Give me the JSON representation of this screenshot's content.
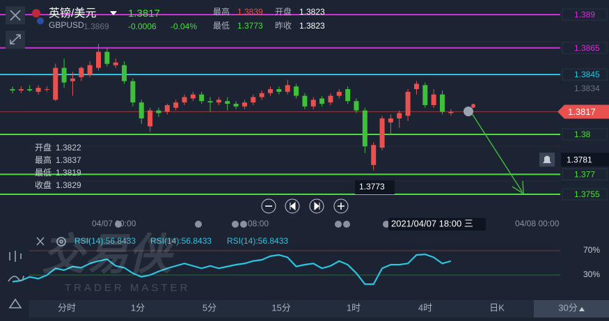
{
  "header": {
    "symbol": "英镑/美元",
    "code": "GBPUSD",
    "price": "1.3817",
    "change": "-0.0006",
    "change_pct": "-0.04%",
    "high_label": "最高",
    "high": "1.3839",
    "open_label": "开盘",
    "open": "1.3823",
    "low_label": "最低",
    "low": "1.3773",
    "prev_label": "昨收",
    "prev": "1.3823"
  },
  "price_chart": {
    "ylim": [
      1.3755,
      1.389
    ],
    "levels": [
      {
        "price": 1.389,
        "color": "#d12fd6"
      },
      {
        "price": 1.3865,
        "color": "#d12fd6"
      },
      {
        "price": 1.3845,
        "color": "#2ec4e0"
      },
      {
        "price": 1.38,
        "color": "#4fdd3f"
      },
      {
        "price": 1.377,
        "color": "#4fdd3f"
      },
      {
        "price": 1.3755,
        "color": "#4fdd3f"
      }
    ],
    "marks": {
      "last": 1.3817,
      "ref": 1.3834,
      "alert": 1.3781,
      "low": 1.3773,
      "high_tag": "1.3869"
    },
    "candles": [
      [
        1.3834,
        1.3836,
        1.3831,
        1.3833
      ],
      [
        1.3833,
        1.3836,
        1.3831,
        1.3834
      ],
      [
        1.3834,
        1.3837,
        1.3832,
        1.3833
      ],
      [
        1.3832,
        1.3837,
        1.383,
        1.3835
      ],
      [
        1.3834,
        1.3836,
        1.3832,
        1.3834
      ],
      [
        1.3826,
        1.3853,
        1.3825,
        1.385
      ],
      [
        1.385,
        1.3857,
        1.3835,
        1.3839
      ],
      [
        1.384,
        1.3847,
        1.3829,
        1.3842
      ],
      [
        1.3843,
        1.3851,
        1.384,
        1.385
      ],
      [
        1.3845,
        1.3855,
        1.3843,
        1.3852
      ],
      [
        1.385,
        1.3868,
        1.3848,
        1.3862
      ],
      [
        1.3862,
        1.3865,
        1.3851,
        1.3853
      ],
      [
        1.3852,
        1.3857,
        1.385,
        1.3854
      ],
      [
        1.3852,
        1.3855,
        1.3838,
        1.384
      ],
      [
        1.384,
        1.3842,
        1.3821,
        1.3824
      ],
      [
        1.3824,
        1.3826,
        1.3808,
        1.3812
      ],
      [
        1.3806,
        1.382,
        1.3802,
        1.3818
      ],
      [
        1.3818,
        1.382,
        1.3813,
        1.3816
      ],
      [
        1.3817,
        1.3823,
        1.3815,
        1.3822
      ],
      [
        1.382,
        1.3826,
        1.3818,
        1.3824
      ],
      [
        1.3824,
        1.383,
        1.3822,
        1.3828
      ],
      [
        1.3827,
        1.3832,
        1.3825,
        1.383
      ],
      [
        1.383,
        1.3832,
        1.3823,
        1.3825
      ],
      [
        1.3825,
        1.3828,
        1.3817,
        1.3824
      ],
      [
        1.3824,
        1.3828,
        1.3822,
        1.3826
      ],
      [
        1.3825,
        1.3828,
        1.3818,
        1.3823
      ],
      [
        1.3823,
        1.3825,
        1.3819,
        1.3821
      ],
      [
        1.3821,
        1.3826,
        1.3819,
        1.3824
      ],
      [
        1.3824,
        1.383,
        1.3822,
        1.3828
      ],
      [
        1.3828,
        1.3833,
        1.3826,
        1.3831
      ],
      [
        1.3831,
        1.3836,
        1.3829,
        1.3834
      ],
      [
        1.3834,
        1.3836,
        1.383,
        1.3832
      ],
      [
        1.3832,
        1.3841,
        1.383,
        1.3837
      ],
      [
        1.3836,
        1.3838,
        1.3827,
        1.3829
      ],
      [
        1.3829,
        1.3831,
        1.3819,
        1.3821
      ],
      [
        1.3821,
        1.3828,
        1.3819,
        1.3826
      ],
      [
        1.3827,
        1.3829,
        1.3821,
        1.3823
      ],
      [
        1.3824,
        1.3831,
        1.3822,
        1.3829
      ],
      [
        1.3829,
        1.3834,
        1.3827,
        1.3832
      ],
      [
        1.3834,
        1.3836,
        1.3823,
        1.3825
      ],
      [
        1.3825,
        1.3827,
        1.3816,
        1.3818
      ],
      [
        1.3818,
        1.382,
        1.3786,
        1.3791
      ],
      [
        1.3777,
        1.3794,
        1.3773,
        1.3792
      ],
      [
        1.379,
        1.3814,
        1.3788,
        1.3812
      ],
      [
        1.3809,
        1.3815,
        1.38,
        1.3812
      ],
      [
        1.3812,
        1.3818,
        1.3805,
        1.3816
      ],
      [
        1.3814,
        1.3834,
        1.381,
        1.3832
      ],
      [
        1.3834,
        1.384,
        1.383,
        1.3838
      ],
      [
        1.3837,
        1.3839,
        1.382,
        1.3822
      ],
      [
        1.3822,
        1.3834,
        1.382,
        1.383
      ],
      [
        1.383,
        1.3833,
        1.3815,
        1.3817
      ],
      [
        1.3816,
        1.3819,
        1.3814,
        1.3817
      ]
    ]
  },
  "info_box": [
    {
      "label": "开盘",
      "value": "1.3822"
    },
    {
      "label": "最高",
      "value": "1.3837"
    },
    {
      "label": "最低",
      "value": "1.3819"
    },
    {
      "label": "收盘",
      "value": "1.3829"
    }
  ],
  "time_axis": [
    "04/07 00:00",
    "08:00",
    "2021/04/07 18:00 三",
    "04/08 00:00"
  ],
  "rsi": {
    "legend": [
      "RSI(14):56.8433",
      "RSI(14):56.8433",
      "RSI(14):56.8433"
    ],
    "levels": [
      {
        "value": 70,
        "label": "70%"
      },
      {
        "value": 30,
        "label": "30%"
      }
    ],
    "values": [
      19,
      21,
      27,
      24,
      30,
      41,
      38,
      44,
      42,
      49,
      53,
      56,
      45,
      42,
      33,
      27,
      30,
      36,
      41,
      45,
      49,
      45,
      41,
      45,
      41,
      44,
      47,
      49,
      53,
      55,
      61,
      63,
      59,
      44,
      47,
      49,
      41,
      45,
      53,
      47,
      33,
      15,
      15,
      41,
      47,
      47,
      49,
      63,
      64,
      59,
      49,
      53
    ]
  },
  "watermark": {
    "cn": "交易侠",
    "en": "TRADER MASTER"
  },
  "tabs": [
    "分时",
    "1分",
    "5分",
    "15分",
    "1时",
    "4时",
    "日K",
    "30分"
  ]
}
